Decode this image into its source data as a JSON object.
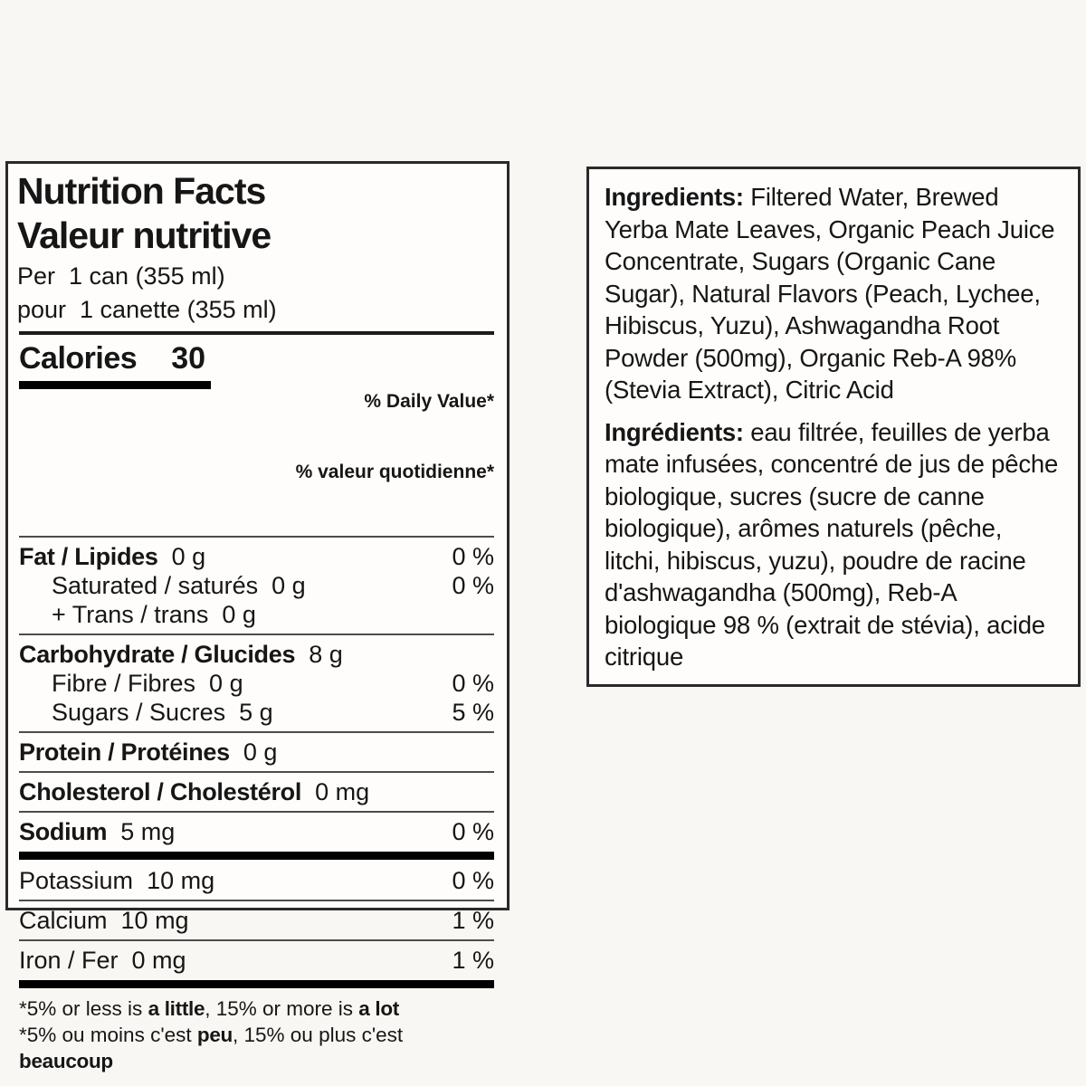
{
  "page": {
    "background": "#f8f7f4"
  },
  "nutrition": {
    "title_en": "Nutrition Facts",
    "title_fr": "Valeur nutritive",
    "serving_en": "Per  1 can (355 ml)",
    "serving_fr": "pour  1 canette (355 ml)",
    "calories_label": "Calories",
    "calories_value": "30",
    "dv_header_line1": "% Daily Value*",
    "dv_header_line2": "% valeur quotidienne*",
    "rows": [
      {
        "label": "Fat / Lipides",
        "amount": "0 g",
        "dv": "0 %",
        "bold": true,
        "indent": false,
        "divider_before": "thin"
      },
      {
        "label": "Saturated / saturés",
        "amount": "0 g",
        "dv": "0 %",
        "bold": false,
        "indent": true,
        "divider_before": "none"
      },
      {
        "label": "+ Trans / trans",
        "amount": "0 g",
        "dv": "",
        "bold": false,
        "indent": true,
        "divider_before": "none"
      },
      {
        "label": "Carbohydrate / Glucides",
        "amount": "8 g",
        "dv": "",
        "bold": true,
        "indent": false,
        "divider_before": "thin"
      },
      {
        "label": "Fibre / Fibres",
        "amount": "0 g",
        "dv": "0 %",
        "bold": false,
        "indent": true,
        "divider_before": "none"
      },
      {
        "label": "Sugars / Sucres",
        "amount": "5 g",
        "dv": "5 %",
        "bold": false,
        "indent": true,
        "divider_before": "none"
      },
      {
        "label": "Protein / Protéines",
        "amount": "0 g",
        "dv": "",
        "bold": true,
        "indent": false,
        "divider_before": "thin"
      },
      {
        "label": "Cholesterol / Cholestérol",
        "amount": "0 mg",
        "dv": "",
        "bold": true,
        "indent": false,
        "divider_before": "thin"
      },
      {
        "label": "Sodium",
        "amount": "5 mg",
        "dv": "0 %",
        "bold": true,
        "indent": false,
        "divider_before": "thin"
      },
      {
        "label": "Potassium",
        "amount": "10 mg",
        "dv": "0 %",
        "bold": false,
        "indent": false,
        "divider_before": "thick"
      },
      {
        "label": "Calcium",
        "amount": "10 mg",
        "dv": "1 %",
        "bold": false,
        "indent": false,
        "divider_before": "thin"
      },
      {
        "label": "Iron / Fer",
        "amount": "0 mg",
        "dv": "1 %",
        "bold": false,
        "indent": false,
        "divider_before": "thin"
      }
    ],
    "footnotes": [
      [
        {
          "t": "*5% or less is ",
          "b": false
        },
        {
          "t": "a little",
          "b": true
        },
        {
          "t": ", 15% or more is ",
          "b": false
        },
        {
          "t": "a lot",
          "b": true
        }
      ],
      [
        {
          "t": "*5% ou moins c'est ",
          "b": false
        },
        {
          "t": "peu",
          "b": true
        },
        {
          "t": ", 15% ou plus c'est ",
          "b": false
        },
        {
          "t": "beaucoup",
          "b": true
        }
      ]
    ]
  },
  "ingredients": {
    "en": {
      "lead": "Ingredients:",
      "text": " Filtered Water, Brewed Yerba Mate Leaves, Organic Peach Juice Concentrate, Sugars (Organic Cane Sugar), Natural Flavors (Peach, Lychee, Hibiscus, Yuzu), Ashwagandha Root Powder (500mg), Organic Reb-A 98% (Stevia Extract), Citric Acid"
    },
    "fr": {
      "lead": "Ingrédients:",
      "text": " eau filtrée, feuilles de yerba mate infusées, concentré de jus de pêche biologique, sucres (sucre de canne biologique), arômes naturels (pêche, litchi, hibiscus, yuzu), poudre de racine d'ashwagandha (500mg), Reb-A biologique 98 % (extrait de stévia), acide citrique"
    }
  }
}
